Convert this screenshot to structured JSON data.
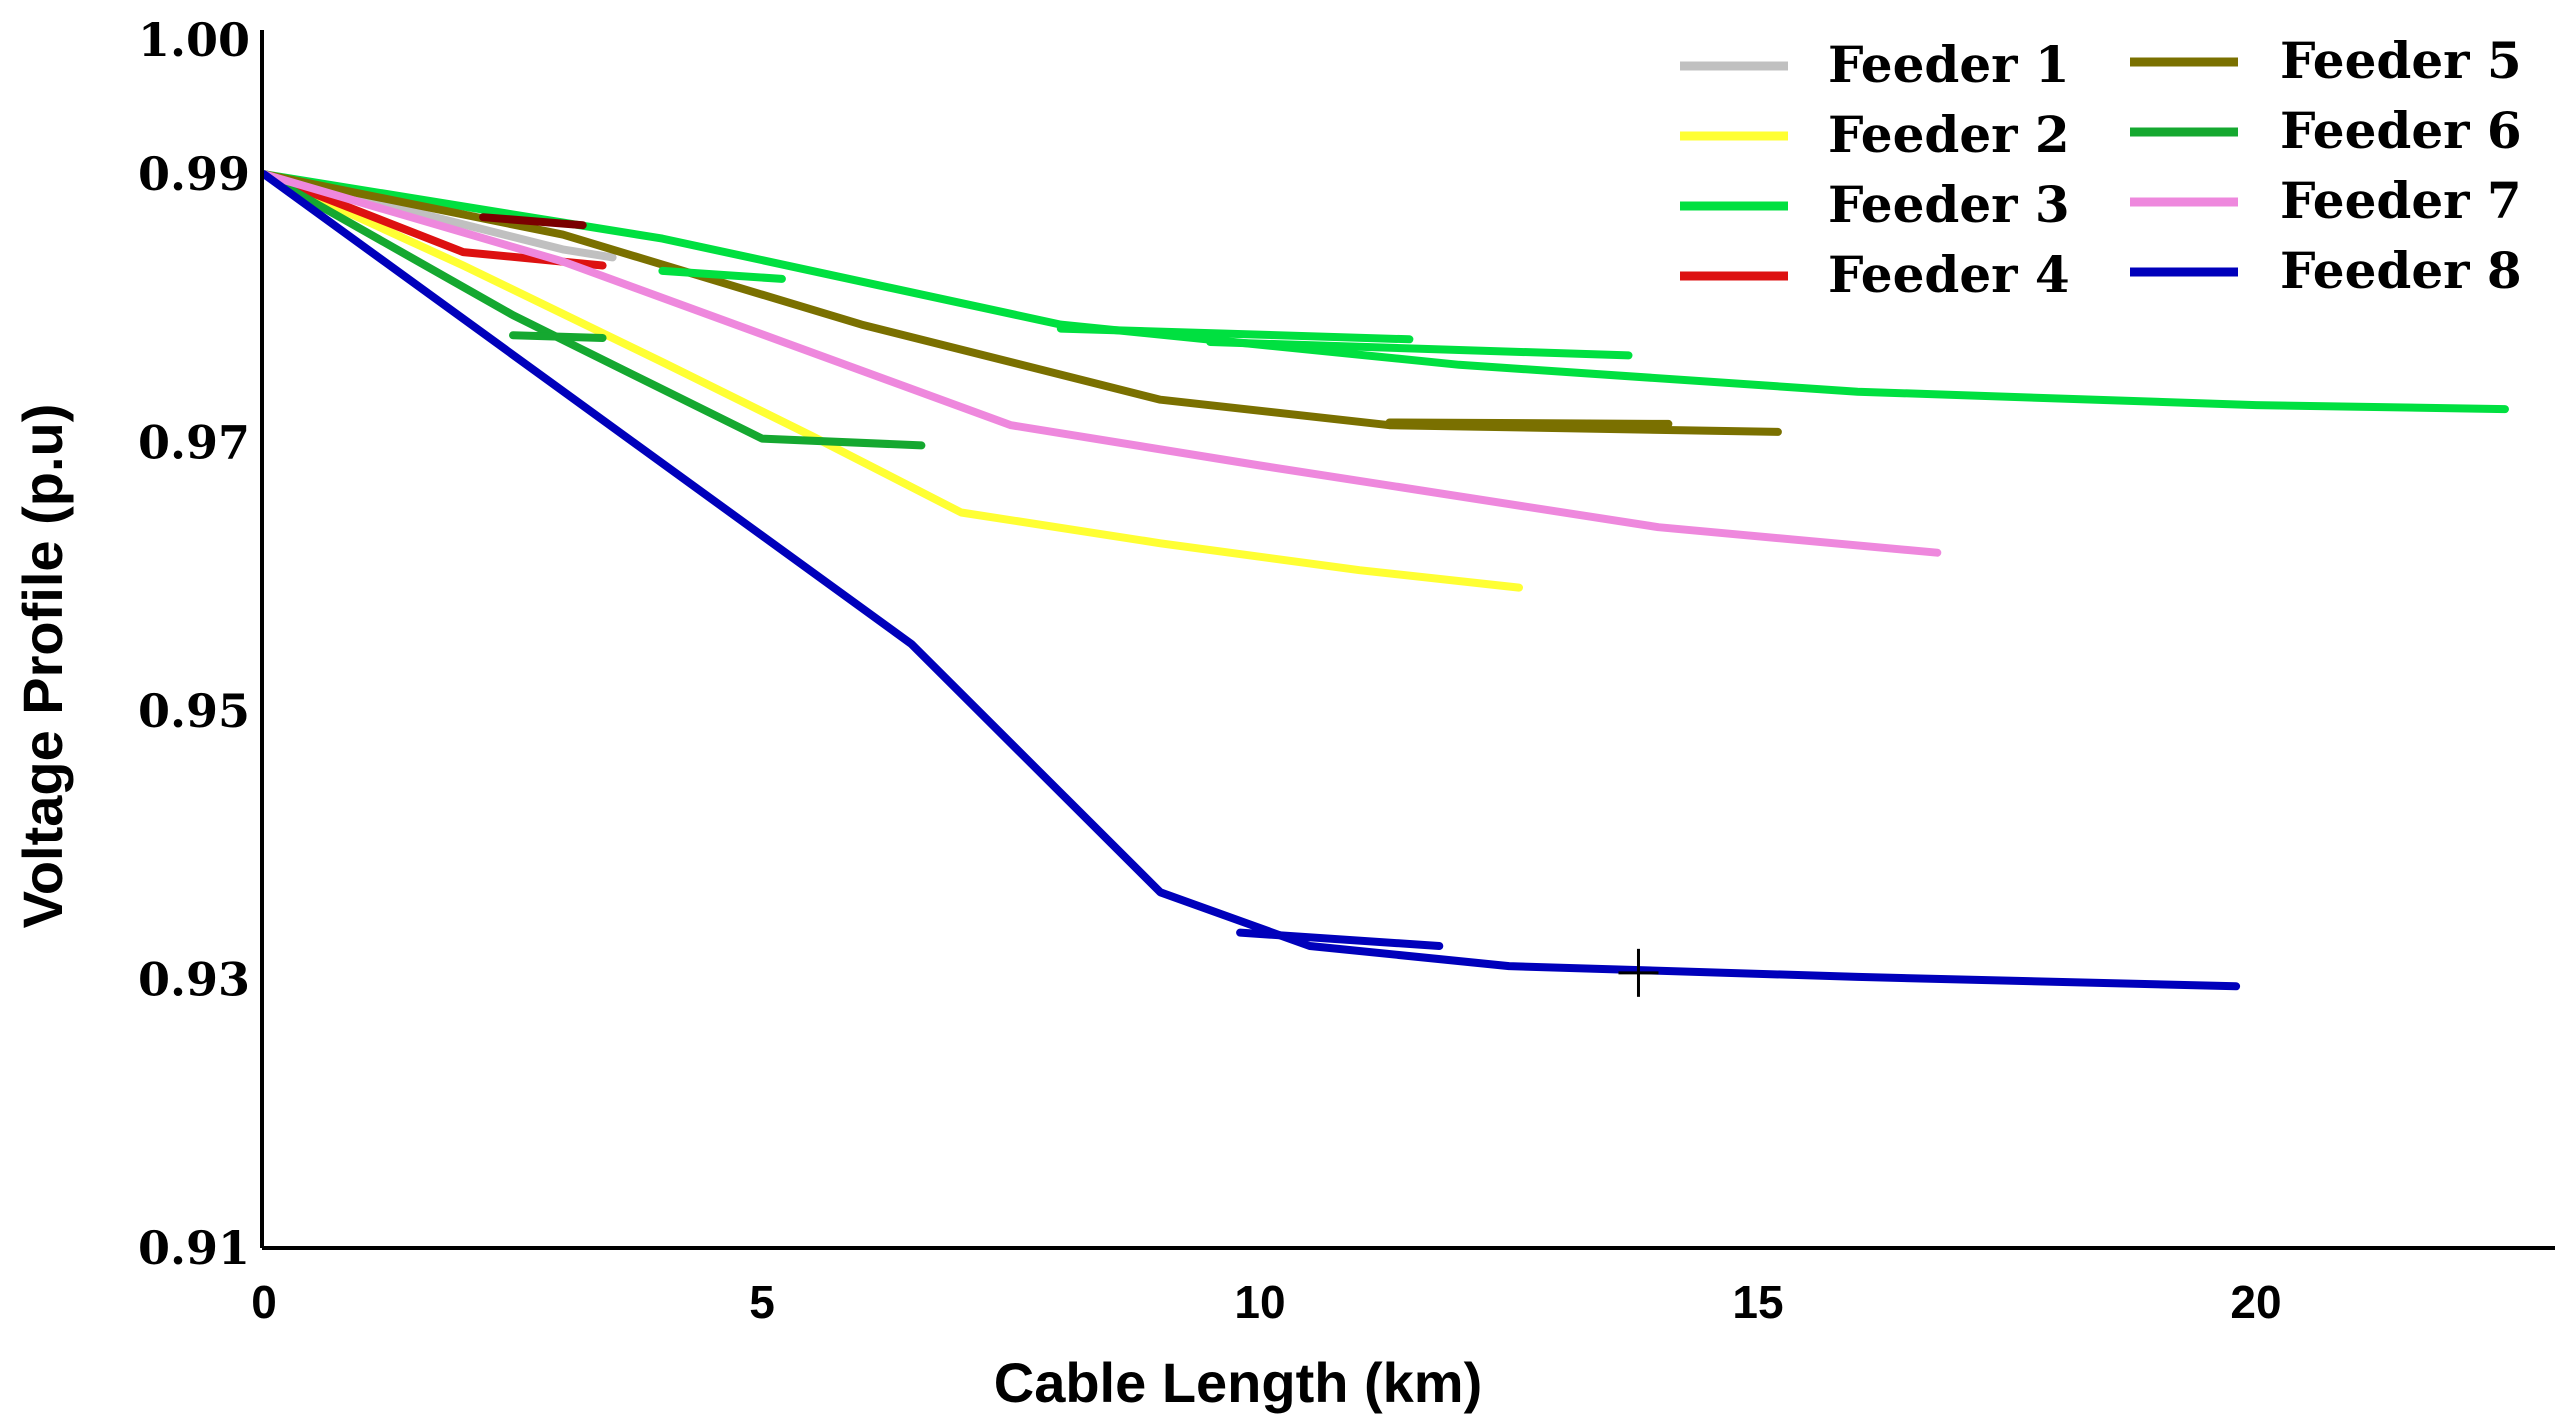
{
  "chart_data": {
    "type": "line",
    "title": "",
    "xlabel": "Cable Length (km)",
    "ylabel": "Voltage Profile (p.u)",
    "xlim": [
      0,
      23
    ],
    "ylim": [
      0.91,
      1.0
    ],
    "x_ticks": [
      "0",
      "5",
      "10",
      "15",
      "20"
    ],
    "y_ticks": [
      "0.91",
      "0.93",
      "0.95",
      "0.97",
      "0.99",
      "1.00"
    ],
    "legend_position": "top-right",
    "grid": false,
    "series": [
      {
        "name": "Feeder 1",
        "color": "#c0c0c0",
        "points": [
          [
            0,
            0.99
          ],
          [
            3,
            0.9844
          ],
          [
            3.5,
            0.9838
          ]
        ]
      },
      {
        "name": "Feeder 2",
        "color": "#ffff33",
        "points": [
          [
            0,
            0.99
          ],
          [
            2,
            0.9832
          ],
          [
            4,
            0.976
          ],
          [
            5.5,
            0.9705
          ],
          [
            7,
            0.9648
          ],
          [
            9,
            0.9625
          ],
          [
            11,
            0.9605
          ],
          [
            12.6,
            0.9592
          ]
        ]
      },
      {
        "name": "Feeder 3",
        "color": "#00e040",
        "points": [
          [
            0,
            0.99
          ],
          [
            4,
            0.9852
          ],
          [
            8,
            0.9788
          ],
          [
            12,
            0.9758
          ],
          [
            16,
            0.9738
          ],
          [
            20,
            0.9728
          ],
          [
            22.5,
            0.9725
          ]
        ]
      },
      {
        "name": "Feeder 4",
        "color": "#dd1111",
        "points": [
          [
            0,
            0.99
          ],
          [
            2,
            0.9842
          ],
          [
            3.4,
            0.9832
          ]
        ]
      },
      {
        "name": "Feeder 5",
        "color": "#7a7000",
        "points": [
          [
            0,
            0.99
          ],
          [
            3,
            0.9855
          ],
          [
            6,
            0.9788
          ],
          [
            9,
            0.9732
          ],
          [
            11.3,
            0.9713
          ],
          [
            15.2,
            0.9708
          ]
        ]
      },
      {
        "name": "Feeder 6",
        "color": "#15a830",
        "points": [
          [
            0,
            0.99
          ],
          [
            2.5,
            0.9795
          ],
          [
            5,
            0.9703
          ],
          [
            6.6,
            0.9698
          ]
        ]
      },
      {
        "name": "Feeder 7",
        "color": "#ee88dd",
        "points": [
          [
            0,
            0.99
          ],
          [
            3,
            0.9835
          ],
          [
            7.5,
            0.9713
          ],
          [
            10,
            0.9683
          ],
          [
            14,
            0.9637
          ],
          [
            16.8,
            0.9618
          ]
        ]
      },
      {
        "name": "Feeder 8",
        "color": "#0000bb",
        "points": [
          [
            0,
            0.99
          ],
          [
            6.5,
            0.955
          ],
          [
            9,
            0.9365
          ],
          [
            10.5,
            0.9325
          ],
          [
            12.5,
            0.931
          ],
          [
            16,
            0.9302
          ],
          [
            19.8,
            0.9295
          ]
        ]
      }
    ],
    "extra_segments": [
      {
        "series": "Feeder 5",
        "color": "#7a0000",
        "points": [
          [
            2.2,
            0.9868
          ],
          [
            3.2,
            0.9862
          ]
        ]
      },
      {
        "series": "Feeder 3",
        "color": "#00e040",
        "points": [
          [
            8,
            0.9785
          ],
          [
            11.5,
            0.9777
          ]
        ]
      },
      {
        "series": "Feeder 3",
        "color": "#00e040",
        "points": [
          [
            9.5,
            0.9775
          ],
          [
            13.7,
            0.9765
          ]
        ]
      },
      {
        "series": "Feeder 3",
        "color": "#00e040",
        "points": [
          [
            4,
            0.9828
          ],
          [
            5.2,
            0.9822
          ]
        ]
      },
      {
        "series": "Feeder 6",
        "color": "#15a830",
        "points": [
          [
            2.5,
            0.978
          ],
          [
            3.4,
            0.9778
          ]
        ]
      },
      {
        "series": "Feeder 8",
        "color": "#0000bb",
        "points": [
          [
            9.8,
            0.9335
          ],
          [
            11.8,
            0.9325
          ]
        ]
      },
      {
        "series": "Feeder 5",
        "color": "#7a7000",
        "points": [
          [
            11.3,
            0.9715
          ],
          [
            14.1,
            0.9714
          ]
        ]
      }
    ],
    "marker_annotation": {
      "x": 13.8,
      "y": 0.9305,
      "symbol": "+"
    }
  }
}
